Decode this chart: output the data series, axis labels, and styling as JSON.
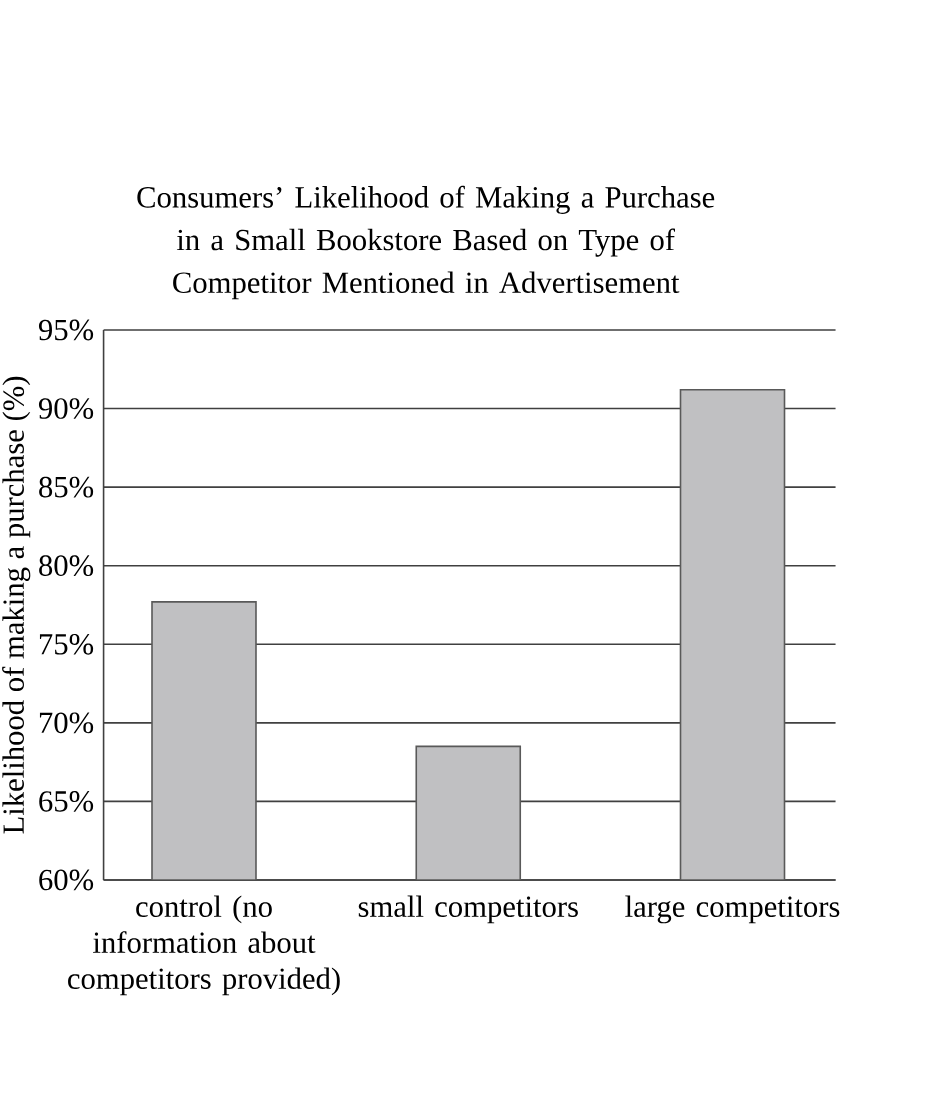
{
  "chart_data": {
    "type": "bar",
    "title": "Consumers’ Likelihood of Making a Purchase in a Small Bookstore Based on Type of Competitor Mentioned in Advertisement",
    "ylabel": "Likelihood of making a purchase (%)",
    "categories": [
      "control (no information about competitors provided)",
      "small competitors",
      "large competitors"
    ],
    "values": [
      77.7,
      68.5,
      91.2
    ],
    "color": "#c0c0c2",
    "ylim": [
      60,
      95
    ],
    "yticks": [
      {
        "value": 60,
        "label": "60%"
      },
      {
        "value": 65,
        "label": "65%"
      },
      {
        "value": 70,
        "label": "70%"
      },
      {
        "value": 75,
        "label": "75%"
      },
      {
        "value": 80,
        "label": "80%"
      },
      {
        "value": 85,
        "label": "85%"
      },
      {
        "value": 90,
        "label": "90%"
      },
      {
        "value": 95,
        "label": "95%"
      }
    ],
    "grid": "y"
  }
}
